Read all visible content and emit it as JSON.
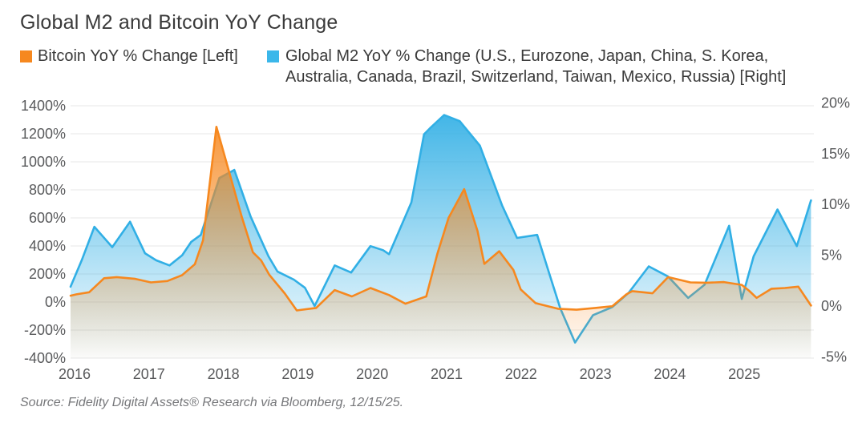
{
  "title": "Global M2 and Bitcoin YoY Change",
  "legend": {
    "bitcoin": {
      "label": "Bitcoin YoY % Change [Left]",
      "color": "#F6881F"
    },
    "m2": {
      "line1": "Global M2 YoY % Change (U.S., Eurozone, Japan, China, S. Korea,",
      "line2": "Australia, Canada, Brazil, Switzerland, Taiwan, Mexico, Russia) [Right]",
      "color": "#3BB7EA"
    }
  },
  "source": "Source: Fidelity Digital Assets® Research via Bloomberg, 12/15/25.",
  "colors": {
    "bitcoin_line": "#F6881F",
    "m2_line": "#31AFE5",
    "grid": "#e7e7e7",
    "axis_text": "#58595b"
  },
  "chart_data": {
    "type": "area",
    "x_ticks": [
      2016,
      2017,
      2018,
      2019,
      2020,
      2021,
      2022,
      2023,
      2024,
      2025
    ],
    "left_axis": {
      "title": "Bitcoin YoY % Change",
      "unit": "%",
      "ticks": [
        1400,
        1200,
        1000,
        800,
        600,
        400,
        200,
        0,
        -200,
        -400
      ],
      "range": [
        -400,
        1400
      ]
    },
    "right_axis": {
      "title": "Global M2 YoY % Change",
      "unit": "%",
      "ticks": [
        20,
        15,
        10,
        5,
        0,
        -5
      ],
      "range": [
        -5,
        20
      ]
    },
    "grid": true,
    "legend_position": "top",
    "series": [
      {
        "name": "Bitcoin YoY % Change",
        "axis": "left",
        "color": "#F6881F",
        "points": [
          [
            2016.0,
            45
          ],
          [
            2016.08,
            55
          ],
          [
            2016.25,
            70
          ],
          [
            2016.45,
            170
          ],
          [
            2016.62,
            178
          ],
          [
            2016.87,
            165
          ],
          [
            2017.08,
            140
          ],
          [
            2017.3,
            150
          ],
          [
            2017.5,
            192
          ],
          [
            2017.67,
            270
          ],
          [
            2017.78,
            440
          ],
          [
            2017.96,
            1250
          ],
          [
            2018.12,
            950
          ],
          [
            2018.3,
            610
          ],
          [
            2018.45,
            355
          ],
          [
            2018.56,
            297
          ],
          [
            2018.67,
            195
          ],
          [
            2018.88,
            60
          ],
          [
            2019.04,
            -60
          ],
          [
            2019.3,
            -42
          ],
          [
            2019.55,
            85
          ],
          [
            2019.78,
            40
          ],
          [
            2020.03,
            100
          ],
          [
            2020.28,
            50
          ],
          [
            2020.5,
            -12
          ],
          [
            2020.78,
            40
          ],
          [
            2020.93,
            345
          ],
          [
            2021.08,
            600
          ],
          [
            2021.29,
            805
          ],
          [
            2021.47,
            505
          ],
          [
            2021.56,
            272
          ],
          [
            2021.76,
            362
          ],
          [
            2021.95,
            230
          ],
          [
            2022.05,
            90
          ],
          [
            2022.25,
            -8
          ],
          [
            2022.55,
            -48
          ],
          [
            2022.8,
            -55
          ],
          [
            2023.05,
            -42
          ],
          [
            2023.28,
            -30
          ],
          [
            2023.47,
            55
          ],
          [
            2023.55,
            78
          ],
          [
            2023.72,
            68
          ],
          [
            2023.82,
            62
          ],
          [
            2024.03,
            178
          ],
          [
            2024.33,
            140
          ],
          [
            2024.55,
            138
          ],
          [
            2024.78,
            142
          ],
          [
            2025.02,
            122
          ],
          [
            2025.12,
            80
          ],
          [
            2025.22,
            30
          ],
          [
            2025.42,
            95
          ],
          [
            2025.6,
            100
          ],
          [
            2025.78,
            110
          ],
          [
            2025.95,
            -25
          ]
        ]
      },
      {
        "name": "Global M2 YoY % Change",
        "axis": "right",
        "color": "#31AFE5",
        "points": [
          [
            2016.0,
            1.9
          ],
          [
            2016.15,
            4.5
          ],
          [
            2016.32,
            7.8
          ],
          [
            2016.56,
            5.8
          ],
          [
            2016.8,
            8.3
          ],
          [
            2017.0,
            5.2
          ],
          [
            2017.15,
            4.5
          ],
          [
            2017.33,
            4.0
          ],
          [
            2017.5,
            5.0
          ],
          [
            2017.62,
            6.3
          ],
          [
            2017.75,
            7.0
          ],
          [
            2018.0,
            12.6
          ],
          [
            2018.2,
            13.4
          ],
          [
            2018.42,
            8.8
          ],
          [
            2018.53,
            7.0
          ],
          [
            2018.66,
            4.9
          ],
          [
            2018.78,
            3.4
          ],
          [
            2019.0,
            2.6
          ],
          [
            2019.15,
            1.8
          ],
          [
            2019.28,
            0.0
          ],
          [
            2019.55,
            4.0
          ],
          [
            2019.77,
            3.3
          ],
          [
            2020.03,
            5.9
          ],
          [
            2020.2,
            5.5
          ],
          [
            2020.28,
            5.1
          ],
          [
            2020.58,
            10.2
          ],
          [
            2020.75,
            16.9
          ],
          [
            2020.83,
            17.5
          ],
          [
            2021.02,
            18.8
          ],
          [
            2021.23,
            18.2
          ],
          [
            2021.5,
            15.8
          ],
          [
            2021.8,
            9.9
          ],
          [
            2022.0,
            6.7
          ],
          [
            2022.27,
            7.0
          ],
          [
            2022.42,
            3.5
          ],
          [
            2022.58,
            -0.2
          ],
          [
            2022.78,
            -3.6
          ],
          [
            2023.02,
            -0.9
          ],
          [
            2023.28,
            -0.1
          ],
          [
            2023.5,
            1.3
          ],
          [
            2023.77,
            3.9
          ],
          [
            2024.03,
            2.9
          ],
          [
            2024.3,
            0.8
          ],
          [
            2024.52,
            2.1
          ],
          [
            2024.85,
            7.9
          ],
          [
            2025.02,
            0.7
          ],
          [
            2025.18,
            4.9
          ],
          [
            2025.5,
            9.5
          ],
          [
            2025.76,
            5.9
          ],
          [
            2025.95,
            10.4
          ]
        ]
      }
    ]
  }
}
